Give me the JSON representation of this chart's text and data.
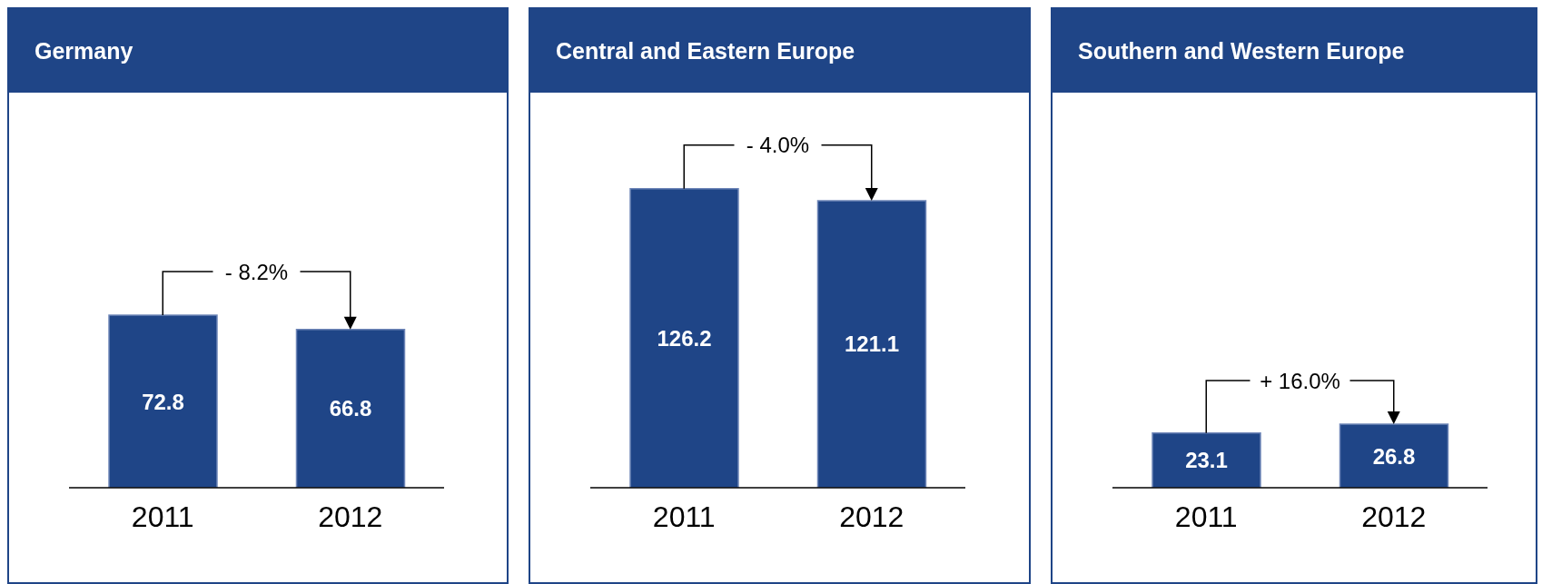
{
  "chart_data": [
    {
      "type": "bar",
      "title": "Germany",
      "categories": [
        "2011",
        "2012"
      ],
      "values": [
        72.8,
        66.8
      ],
      "color": "#1f4587",
      "data_labels": true,
      "annotations": [
        "- 8.2%"
      ]
    },
    {
      "type": "bar",
      "title": "Central and Eastern Europe",
      "categories": [
        "2011",
        "2012"
      ],
      "values": [
        126.2,
        121.1
      ],
      "color": "#1f4587",
      "data_labels": true,
      "annotations": [
        "- 4.0%"
      ]
    },
    {
      "type": "bar",
      "title": "Southern and Western Europe",
      "categories": [
        "2011",
        "2012"
      ],
      "values": [
        23.1,
        26.8
      ],
      "color": "#1f4587",
      "data_labels": true,
      "annotations": [
        "+ 16.0%"
      ]
    }
  ]
}
